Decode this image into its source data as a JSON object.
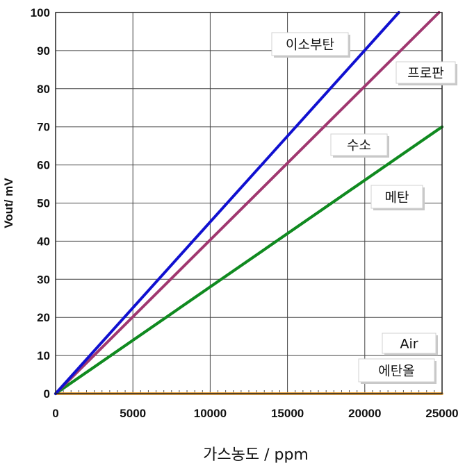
{
  "chart_data": {
    "type": "line",
    "xlabel": "가스농도 / ppm",
    "ylabel": "Vout/ mV",
    "xlim": [
      0,
      25000
    ],
    "ylim": [
      0,
      100
    ],
    "xticks": [
      0,
      5000,
      10000,
      15000,
      20000,
      25000
    ],
    "yticks": [
      0,
      10,
      20,
      30,
      40,
      50,
      60,
      70,
      80,
      90,
      100
    ],
    "grid": true,
    "series": [
      {
        "name": "이소부탄",
        "color": "#1010d0",
        "x": [
          0,
          22200
        ],
        "y": [
          0,
          100
        ]
      },
      {
        "name": "프로판",
        "color": "#a03870",
        "x": [
          0,
          24800
        ],
        "y": [
          0,
          100
        ]
      },
      {
        "name": "수소",
        "color": "#108a20",
        "x": [
          0,
          25000
        ],
        "y": [
          0,
          70
        ]
      },
      {
        "name": "메탄",
        "color": "#108a20",
        "x": [
          0,
          25000
        ],
        "y": [
          0,
          70
        ]
      },
      {
        "name": "Air",
        "color": "#e39a30",
        "x": [
          0,
          25000
        ],
        "y": [
          0,
          0
        ]
      },
      {
        "name": "에탄올",
        "color": "#e39a30",
        "x": [
          0,
          25000
        ],
        "y": [
          0,
          0
        ]
      }
    ]
  }
}
